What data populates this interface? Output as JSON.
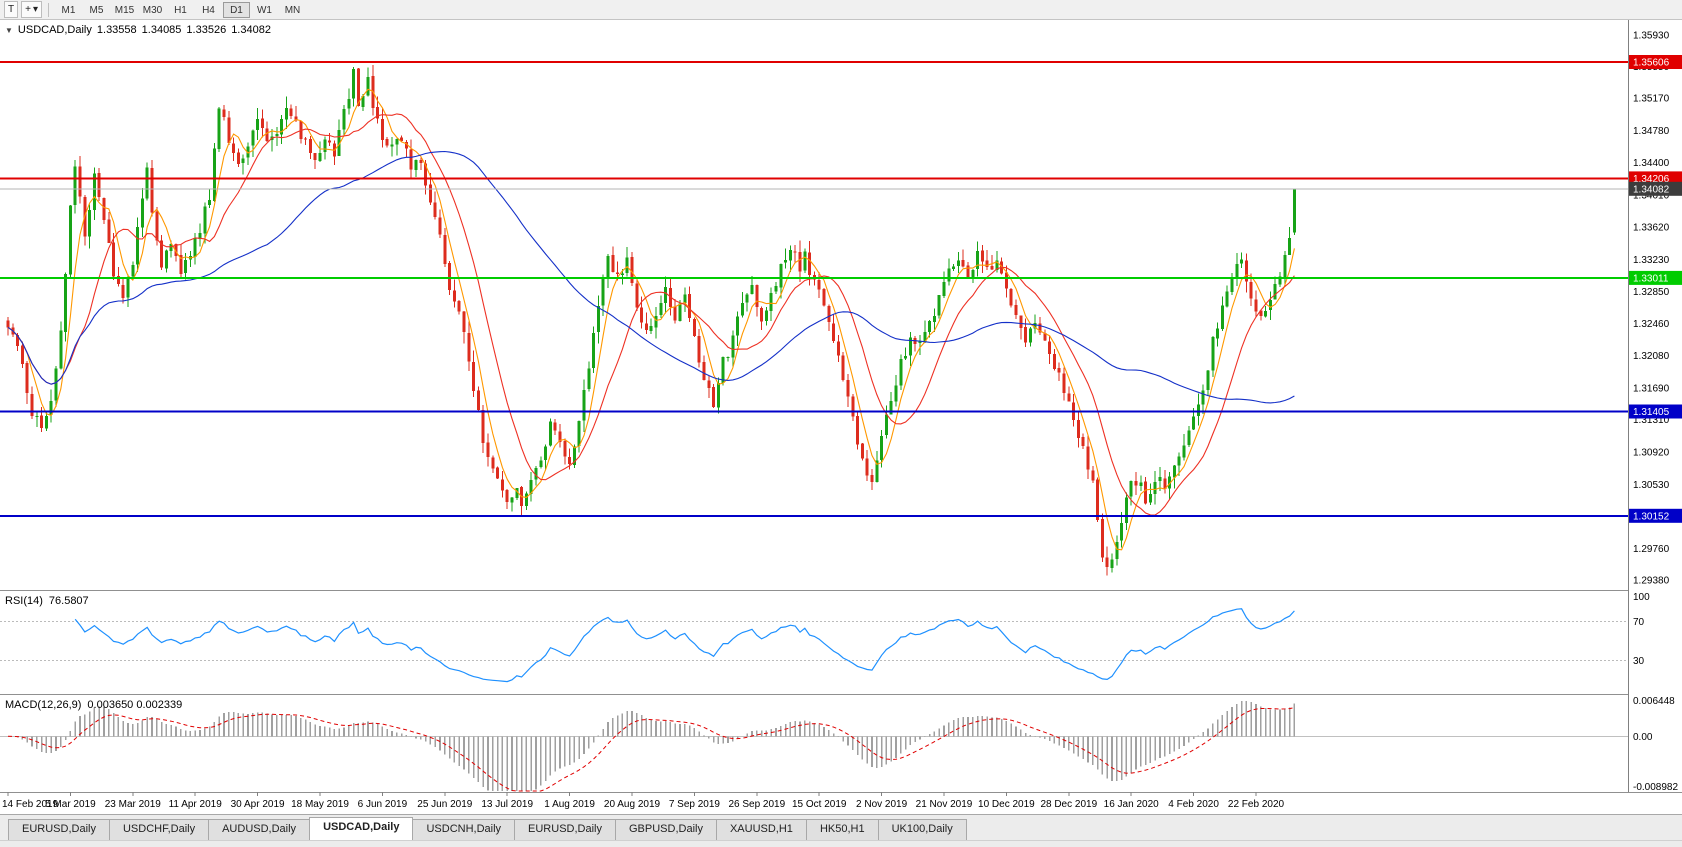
{
  "icons": {
    "caret_down": "▾",
    "collapse_triangle": "▼",
    "cursor_tool": "+"
  },
  "toolbar": {
    "chart_tool_label": "T",
    "timeframes": [
      "M1",
      "M5",
      "M15",
      "M30",
      "H1",
      "H4",
      "D1",
      "W1",
      "MN"
    ],
    "active_timeframe": "D1"
  },
  "header": {
    "symbol": "USDCAD,Daily",
    "open": "1.33558",
    "high": "1.34085",
    "low": "1.33526",
    "close": "1.34082"
  },
  "indicators": {
    "rsi": {
      "label": "RSI(14)",
      "value": "76.5807",
      "period": 14,
      "axis_labels": [
        "100",
        "70",
        "30"
      ],
      "levels": [
        70,
        30
      ],
      "line_color": "#1E90FF",
      "level_color": "#bbbbbb"
    },
    "macd": {
      "label": "MACD(12,26,9)",
      "values": "0.003650 0.002339",
      "fast": 12,
      "slow": 26,
      "signal": 9,
      "axis_labels": [
        "0.006448",
        "0.00",
        "-0.008982"
      ],
      "axis_max": 0.006448,
      "axis_min": -0.008982,
      "hist_color": "#a0a0a0",
      "signal_color": "#E00000"
    }
  },
  "chart_data": {
    "type": "candlestick",
    "symbol": "USDCAD",
    "timeframe": "Daily",
    "axis_top_price": 1.3593,
    "axis_bottom_price": 1.2938,
    "price_axis_ticks": [
      "1.35930",
      "1.35550",
      "1.35170",
      "1.34780",
      "1.34400",
      "1.34010",
      "1.33620",
      "1.33230",
      "1.32850",
      "1.32460",
      "1.32080",
      "1.31690",
      "1.31310",
      "1.30920",
      "1.30530",
      "1.30140",
      "1.29760",
      "1.29380"
    ],
    "x_axis_dates": [
      "14 Feb 2019",
      "5 Mar 2019",
      "23 Mar 2019",
      "11 Apr 2019",
      "30 Apr 2019",
      "18 May 2019",
      "6 Jun 2019",
      "25 Jun 2019",
      "13 Jul 2019",
      "1 Aug 2019",
      "20 Aug 2019",
      "7 Sep 2019",
      "26 Sep 2019",
      "15 Oct 2019",
      "2 Nov 2019",
      "21 Nov 2019",
      "10 Dec 2019",
      "28 Dec 2019",
      "16 Jan 2020",
      "4 Feb 2020",
      "22 Feb 2020"
    ],
    "candles_per_date_tick": 13,
    "candle_count": 269,
    "up_color": "#17A317",
    "down_color": "#DD2C1E",
    "last_candle": {
      "o": 1.33558,
      "h": 1.34085,
      "l": 1.33526,
      "c": 1.34082
    },
    "current_price": {
      "value": 1.34082,
      "label": "1.34082",
      "line_color": "#b4b4b4",
      "badge_color": "#3c3c3c"
    },
    "hlines": [
      {
        "price": 1.35606,
        "label": "1.35606",
        "color": "#E00000",
        "width": 2
      },
      {
        "price": 1.34206,
        "label": "1.34206",
        "color": "#E00000",
        "width": 2
      },
      {
        "price": 1.33011,
        "label": "1.33011",
        "color": "#00CC00",
        "width": 2
      },
      {
        "price": 1.31405,
        "label": "1.31405",
        "color": "#0000C8",
        "width": 2
      },
      {
        "price": 1.30152,
        "label": "1.30152",
        "color": "#0000C8",
        "width": 2
      }
    ],
    "ma_lines": [
      {
        "period": 5,
        "color": "#FF9800"
      },
      {
        "period": 13,
        "color": "#EE3124"
      },
      {
        "period": 55,
        "color": "#1430C8"
      }
    ],
    "close_path_anchors": [
      [
        0,
        1.3248
      ],
      [
        2,
        1.3215
      ],
      [
        5,
        1.314
      ],
      [
        7,
        1.3122
      ],
      [
        9,
        1.315
      ],
      [
        11,
        1.324
      ],
      [
        13,
        1.338
      ],
      [
        14,
        1.3438
      ],
      [
        15,
        1.3395
      ],
      [
        16,
        1.335
      ],
      [
        17,
        1.339
      ],
      [
        18,
        1.3432
      ],
      [
        19,
        1.34
      ],
      [
        20,
        1.3368
      ],
      [
        22,
        1.331
      ],
      [
        24,
        1.3275
      ],
      [
        26,
        1.332
      ],
      [
        28,
        1.3395
      ],
      [
        29,
        1.3428
      ],
      [
        30,
        1.338
      ],
      [
        32,
        1.332
      ],
      [
        34,
        1.3345
      ],
      [
        36,
        1.331
      ],
      [
        38,
        1.333
      ],
      [
        40,
        1.336
      ],
      [
        42,
        1.34
      ],
      [
        43,
        1.3455
      ],
      [
        44,
        1.3505
      ],
      [
        46,
        1.347
      ],
      [
        48,
        1.3438
      ],
      [
        50,
        1.3465
      ],
      [
        52,
        1.3495
      ],
      [
        54,
        1.347
      ],
      [
        56,
        1.348
      ],
      [
        58,
        1.3505
      ],
      [
        60,
        1.3485
      ],
      [
        62,
        1.346
      ],
      [
        64,
        1.344
      ],
      [
        66,
        1.347
      ],
      [
        68,
        1.345
      ],
      [
        70,
        1.35
      ],
      [
        72,
        1.3548
      ],
      [
        73,
        1.3505
      ],
      [
        74,
        1.352
      ],
      [
        75,
        1.3545
      ],
      [
        76,
        1.3498
      ],
      [
        78,
        1.3472
      ],
      [
        80,
        1.3458
      ],
      [
        82,
        1.3472
      ],
      [
        84,
        1.3428
      ],
      [
        86,
        1.3442
      ],
      [
        88,
        1.3395
      ],
      [
        90,
        1.3348
      ],
      [
        92,
        1.3285
      ],
      [
        94,
        1.3255
      ],
      [
        96,
        1.3205
      ],
      [
        98,
        1.3135
      ],
      [
        100,
        1.3082
      ],
      [
        102,
        1.3062
      ],
      [
        104,
        1.3035
      ],
      [
        106,
        1.3048
      ],
      [
        107,
        1.302
      ],
      [
        109,
        1.3058
      ],
      [
        111,
        1.3088
      ],
      [
        113,
        1.3122
      ],
      [
        115,
        1.3108
      ],
      [
        117,
        1.3078
      ],
      [
        119,
        1.3128
      ],
      [
        121,
        1.3195
      ],
      [
        123,
        1.3275
      ],
      [
        125,
        1.3322
      ],
      [
        127,
        1.3298
      ],
      [
        129,
        1.3328
      ],
      [
        131,
        1.3272
      ],
      [
        133,
        1.3232
      ],
      [
        135,
        1.3262
      ],
      [
        137,
        1.3288
      ],
      [
        139,
        1.3252
      ],
      [
        141,
        1.3288
      ],
      [
        143,
        1.3232
      ],
      [
        145,
        1.3182
      ],
      [
        147,
        1.3148
      ],
      [
        149,
        1.3198
      ],
      [
        151,
        1.3228
      ],
      [
        153,
        1.3268
      ],
      [
        155,
        1.3288
      ],
      [
        157,
        1.3252
      ],
      [
        159,
        1.3278
      ],
      [
        161,
        1.3318
      ],
      [
        163,
        1.3338
      ],
      [
        165,
        1.3312
      ],
      [
        166,
        1.3332
      ],
      [
        168,
        1.3292
      ],
      [
        170,
        1.3268
      ],
      [
        172,
        1.3222
      ],
      [
        174,
        1.3178
      ],
      [
        176,
        1.3128
      ],
      [
        178,
        1.3082
      ],
      [
        180,
        1.3058
      ],
      [
        182,
        1.3108
      ],
      [
        184,
        1.3158
      ],
      [
        186,
        1.3198
      ],
      [
        188,
        1.3228
      ],
      [
        190,
        1.3218
      ],
      [
        192,
        1.3248
      ],
      [
        194,
        1.3278
      ],
      [
        196,
        1.3308
      ],
      [
        198,
        1.3328
      ],
      [
        200,
        1.3302
      ],
      [
        202,
        1.3328
      ],
      [
        204,
        1.3308
      ],
      [
        206,
        1.3328
      ],
      [
        208,
        1.3288
      ],
      [
        210,
        1.3258
      ],
      [
        212,
        1.3228
      ],
      [
        214,
        1.3248
      ],
      [
        216,
        1.3228
      ],
      [
        218,
        1.3198
      ],
      [
        220,
        1.3168
      ],
      [
        222,
        1.3128
      ],
      [
        224,
        1.3098
      ],
      [
        226,
        1.3058
      ],
      [
        227,
        1.3018
      ],
      [
        228,
        1.2972
      ],
      [
        229,
        1.2948
      ],
      [
        230,
        1.2968
      ],
      [
        232,
        1.3012
      ],
      [
        234,
        1.3052
      ],
      [
        236,
        1.3062
      ],
      [
        237,
        1.3032
      ],
      [
        239,
        1.3062
      ],
      [
        241,
        1.3052
      ],
      [
        243,
        1.3072
      ],
      [
        245,
        1.3102
      ],
      [
        247,
        1.3132
      ],
      [
        249,
        1.3162
      ],
      [
        251,
        1.3222
      ],
      [
        253,
        1.3272
      ],
      [
        255,
        1.3302
      ],
      [
        257,
        1.3322
      ],
      [
        259,
        1.3282
      ],
      [
        261,
        1.3248
      ],
      [
        263,
        1.3268
      ],
      [
        265,
        1.3308
      ],
      [
        266,
        1.3332
      ],
      [
        267,
        1.3356
      ],
      [
        268,
        1.34082
      ]
    ]
  },
  "tabs": [
    {
      "label": "EURUSD,Daily",
      "active": false
    },
    {
      "label": "USDCHF,Daily",
      "active": false
    },
    {
      "label": "AUDUSD,Daily",
      "active": false
    },
    {
      "label": "USDCAD,Daily",
      "active": true
    },
    {
      "label": "USDCNH,Daily",
      "active": false
    },
    {
      "label": "EURUSD,Daily",
      "active": false
    },
    {
      "label": "GBPUSD,Daily",
      "active": false
    },
    {
      "label": "XAUUSD,H1",
      "active": false
    },
    {
      "label": "HK50,H1",
      "active": false
    },
    {
      "label": "UK100,Daily",
      "active": false
    }
  ]
}
